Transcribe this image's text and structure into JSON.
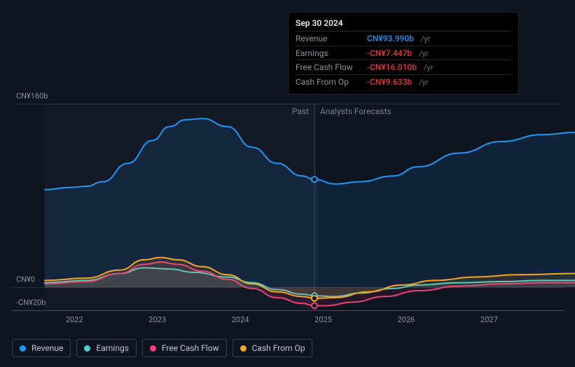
{
  "chart": {
    "background_color": "#0e1420",
    "grid_color": "#2a303c",
    "text_color": "#8a909c",
    "y_axis": {
      "min": -20,
      "max": 160,
      "labels": [
        {
          "value": 160,
          "text": "CN¥160b"
        },
        {
          "value": 0,
          "text": "CN¥0"
        },
        {
          "value": -20,
          "text": "-CN¥20b"
        }
      ]
    },
    "x_axis": {
      "min": 2021.5,
      "max": 2027.9,
      "ticks": [
        2022,
        2023,
        2024,
        2025,
        2026,
        2027
      ]
    },
    "divider_x": 2024.75,
    "past_label": "Past",
    "forecast_label": "Analysts Forecasts",
    "series": [
      {
        "name": "Revenue",
        "color": "#2196f3",
        "fill": true,
        "fill_opacity": 0.12,
        "line_width": 2,
        "points": [
          [
            2021.5,
            85
          ],
          [
            2021.8,
            87
          ],
          [
            2022.0,
            88
          ],
          [
            2022.2,
            92
          ],
          [
            2022.5,
            108
          ],
          [
            2022.8,
            128
          ],
          [
            2023.0,
            140
          ],
          [
            2023.2,
            146
          ],
          [
            2023.4,
            147
          ],
          [
            2023.7,
            140
          ],
          [
            2024.0,
            122
          ],
          [
            2024.3,
            108
          ],
          [
            2024.6,
            97
          ],
          [
            2024.75,
            94
          ],
          [
            2025.0,
            90
          ],
          [
            2025.3,
            92
          ],
          [
            2025.7,
            97
          ],
          [
            2026.0,
            105
          ],
          [
            2026.5,
            117
          ],
          [
            2027.0,
            127
          ],
          [
            2027.5,
            133
          ],
          [
            2027.9,
            135
          ]
        ]
      },
      {
        "name": "Earnings",
        "color": "#4dd0c7",
        "fill": true,
        "fill_opacity": 0.1,
        "line_width": 2,
        "points": [
          [
            2021.5,
            4
          ],
          [
            2022.0,
            6
          ],
          [
            2022.4,
            12
          ],
          [
            2022.7,
            17
          ],
          [
            2023.0,
            16
          ],
          [
            2023.3,
            13
          ],
          [
            2023.7,
            9
          ],
          [
            2024.0,
            4
          ],
          [
            2024.3,
            -2
          ],
          [
            2024.6,
            -6
          ],
          [
            2024.75,
            -7.4
          ],
          [
            2025.0,
            -8
          ],
          [
            2025.3,
            -5
          ],
          [
            2025.7,
            -1
          ],
          [
            2026.0,
            2
          ],
          [
            2026.5,
            4
          ],
          [
            2027.0,
            5
          ],
          [
            2027.5,
            6
          ],
          [
            2027.9,
            6
          ]
        ]
      },
      {
        "name": "Free Cash Flow",
        "color": "#ec407a",
        "fill": true,
        "fill_opacity": 0.1,
        "line_width": 2,
        "points": [
          [
            2021.5,
            3
          ],
          [
            2022.0,
            5
          ],
          [
            2022.4,
            12
          ],
          [
            2022.7,
            20
          ],
          [
            2022.9,
            22
          ],
          [
            2023.1,
            20
          ],
          [
            2023.4,
            14
          ],
          [
            2023.7,
            7
          ],
          [
            2024.0,
            -1
          ],
          [
            2024.3,
            -9
          ],
          [
            2024.6,
            -14
          ],
          [
            2024.75,
            -16
          ],
          [
            2024.9,
            -16
          ],
          [
            2025.2,
            -13
          ],
          [
            2025.6,
            -8
          ],
          [
            2026.0,
            -3
          ],
          [
            2026.5,
            1
          ],
          [
            2027.0,
            3
          ],
          [
            2027.5,
            4
          ],
          [
            2027.9,
            4
          ]
        ]
      },
      {
        "name": "Cash From Op",
        "color": "#f5a623",
        "fill": true,
        "fill_opacity": 0.1,
        "line_width": 2,
        "points": [
          [
            2021.5,
            6
          ],
          [
            2022.0,
            8
          ],
          [
            2022.4,
            15
          ],
          [
            2022.7,
            24
          ],
          [
            2022.9,
            26
          ],
          [
            2023.1,
            24
          ],
          [
            2023.4,
            18
          ],
          [
            2023.7,
            11
          ],
          [
            2024.0,
            3
          ],
          [
            2024.3,
            -4
          ],
          [
            2024.6,
            -8
          ],
          [
            2024.75,
            -9.6
          ],
          [
            2025.0,
            -9
          ],
          [
            2025.4,
            -4
          ],
          [
            2025.8,
            2
          ],
          [
            2026.2,
            6
          ],
          [
            2026.7,
            9
          ],
          [
            2027.2,
            11
          ],
          [
            2027.9,
            12
          ]
        ]
      }
    ],
    "markers": [
      {
        "series": 0,
        "x": 2024.75,
        "y": 94,
        "color": "#2196f3"
      },
      {
        "series": 1,
        "x": 2024.75,
        "y": -7.4,
        "color": "#4dd0c7"
      },
      {
        "series": 3,
        "x": 2024.75,
        "y": -9.6,
        "color": "#f5a623"
      },
      {
        "series": 2,
        "x": 2024.75,
        "y": -16,
        "color": "#ec407a"
      }
    ]
  },
  "tooltip": {
    "title": "Sep 30 2024",
    "rows": [
      {
        "label": "Revenue",
        "value": "CN¥93.990b",
        "color": "#2196f3",
        "suffix": "/yr"
      },
      {
        "label": "Earnings",
        "value": "-CN¥7.447b",
        "color": "#e53935",
        "suffix": "/yr"
      },
      {
        "label": "Free Cash Flow",
        "value": "-CN¥16.010b",
        "color": "#e53935",
        "suffix": "/yr"
      },
      {
        "label": "Cash From Op",
        "value": "-CN¥9.633b",
        "color": "#e53935",
        "suffix": "/yr"
      }
    ]
  },
  "legend": [
    {
      "label": "Revenue",
      "color": "#2196f3"
    },
    {
      "label": "Earnings",
      "color": "#4dd0c7"
    },
    {
      "label": "Free Cash Flow",
      "color": "#ec407a"
    },
    {
      "label": "Cash From Op",
      "color": "#f5a623"
    }
  ]
}
